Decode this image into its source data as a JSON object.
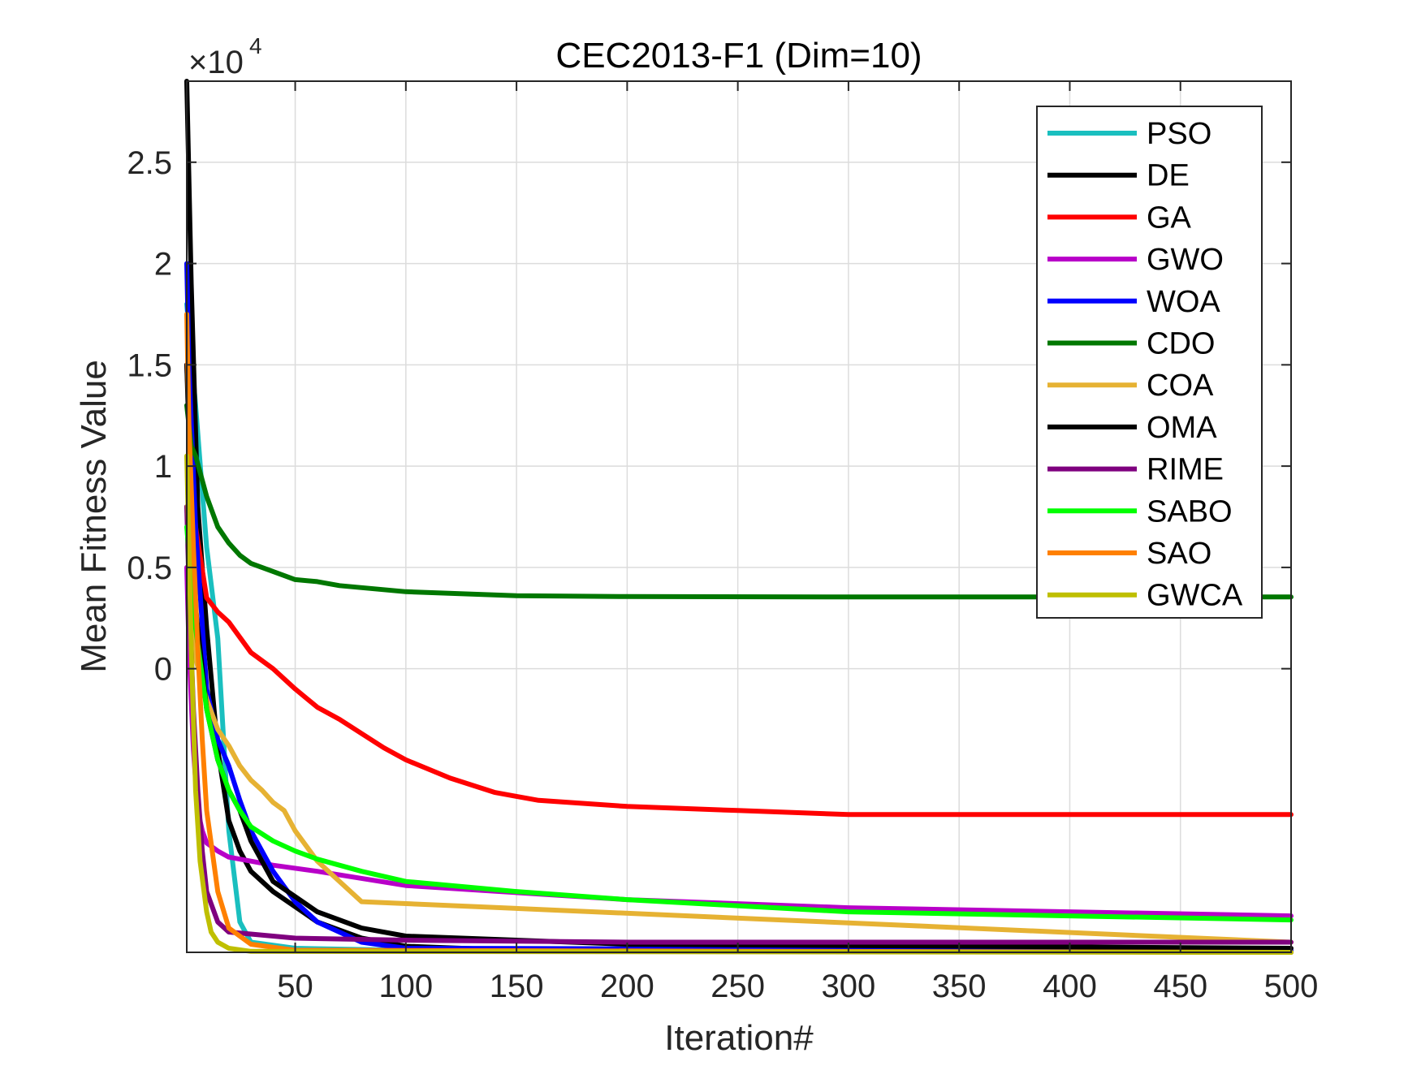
{
  "chart_data": {
    "type": "line",
    "title": "CEC2013-F1 (Dim=10)",
    "xlabel": "Iteration#",
    "ylabel": "Mean Fitness Value",
    "exponent_label": "×10",
    "exponent_power": "4",
    "y_scale": 10000,
    "xlim": [
      1,
      500
    ],
    "ylim": [
      -14000,
      29000
    ],
    "grid": true,
    "legend_position": "top-right",
    "x_ticks": [
      50,
      100,
      150,
      200,
      250,
      300,
      350,
      400,
      450,
      500
    ],
    "x_tick_labels": [
      "50",
      "100",
      "150",
      "200",
      "250",
      "300",
      "350",
      "400",
      "450",
      "500"
    ],
    "y_ticks": [
      0,
      5000,
      10000,
      15000,
      20000,
      25000
    ],
    "y_tick_labels": [
      "0",
      "0.5",
      "1",
      "1.5",
      "2",
      "2.5"
    ],
    "series": [
      {
        "name": "PSO",
        "color": "#1ABFBF",
        "x": [
          1,
          5,
          10,
          15,
          20,
          25,
          30,
          50,
          100,
          500
        ],
        "y": [
          18000,
          13000,
          6000,
          1500,
          -8000,
          -12500,
          -13500,
          -13800,
          -13900,
          -14000
        ]
      },
      {
        "name": "DE",
        "color": "#000000",
        "x": [
          1,
          3,
          6,
          10,
          15,
          20,
          25,
          30,
          40,
          60,
          80,
          100,
          150,
          500
        ],
        "y": [
          29000,
          19000,
          8000,
          2000,
          -4000,
          -7500,
          -9000,
          -10000,
          -11000,
          -12500,
          -13300,
          -13700,
          -13900,
          -14000
        ]
      },
      {
        "name": "GA",
        "color": "#FF0000",
        "x": [
          1,
          3,
          5,
          10,
          15,
          20,
          30,
          40,
          50,
          60,
          70,
          80,
          90,
          100,
          120,
          140,
          150,
          160,
          200,
          250,
          300,
          400,
          500
        ],
        "y": [
          15000,
          10000,
          7000,
          3500,
          2800,
          2300,
          800,
          0,
          -1000,
          -1900,
          -2500,
          -3200,
          -3900,
          -4500,
          -5400,
          -6100,
          -6300,
          -6500,
          -6800,
          -7000,
          -7200,
          -7200,
          -7200
        ]
      },
      {
        "name": "GWO",
        "color": "#B800C8",
        "x": [
          1,
          2,
          4,
          6,
          8,
          10,
          15,
          20,
          40,
          60,
          100,
          200,
          300,
          500
        ],
        "y": [
          5000,
          1000,
          -4000,
          -7000,
          -8000,
          -8600,
          -9000,
          -9300,
          -9700,
          -10000,
          -10700,
          -11400,
          -11800,
          -12200
        ]
      },
      {
        "name": "WOA",
        "color": "#0000FF",
        "x": [
          1,
          2,
          5,
          10,
          15,
          20,
          25,
          30,
          40,
          50,
          60,
          80,
          100,
          500
        ],
        "y": [
          20000,
          15000,
          7000,
          -1000,
          -3500,
          -4800,
          -6500,
          -8000,
          -10000,
          -11500,
          -12500,
          -13500,
          -13800,
          -13900
        ]
      },
      {
        "name": "CDO",
        "color": "#007700",
        "x": [
          1,
          3,
          5,
          10,
          15,
          20,
          25,
          30,
          40,
          50,
          60,
          70,
          80,
          100,
          150,
          200,
          300,
          500
        ],
        "y": [
          13000,
          11000,
          10500,
          8500,
          7000,
          6200,
          5600,
          5200,
          4800,
          4400,
          4300,
          4100,
          4000,
          3800,
          3600,
          3560,
          3540,
          3540
        ]
      },
      {
        "name": "COA",
        "color": "#E6B233",
        "x": [
          1,
          3,
          5,
          10,
          15,
          20,
          25,
          30,
          35,
          40,
          45,
          50,
          60,
          80,
          500
        ],
        "y": [
          8000,
          4000,
          500,
          -1500,
          -3000,
          -3800,
          -4800,
          -5500,
          -6000,
          -6600,
          -7000,
          -8000,
          -9500,
          -11500,
          -13500
        ]
      },
      {
        "name": "OMA",
        "color": "#000000",
        "x": [
          1,
          3,
          5,
          10,
          15,
          20,
          25,
          30,
          40,
          60,
          80,
          100,
          200,
          500
        ],
        "y": [
          15000,
          8000,
          3000,
          -2000,
          -4500,
          -6000,
          -7000,
          -8500,
          -10500,
          -12000,
          -12800,
          -13200,
          -13600,
          -13800
        ]
      },
      {
        "name": "RIME",
        "color": "#7F007F",
        "x": [
          1,
          2,
          4,
          6,
          8,
          10,
          15,
          20,
          50,
          100,
          200,
          500
        ],
        "y": [
          8000,
          4000,
          -2000,
          -6000,
          -9000,
          -11000,
          -12500,
          -13000,
          -13300,
          -13400,
          -13500,
          -13500
        ]
      },
      {
        "name": "SABO",
        "color": "#00FF00",
        "x": [
          1,
          5,
          10,
          15,
          20,
          25,
          30,
          40,
          50,
          60,
          80,
          100,
          150,
          200,
          250,
          300,
          400,
          500
        ],
        "y": [
          7000,
          2000,
          -2000,
          -4500,
          -6000,
          -7000,
          -7800,
          -8500,
          -9000,
          -9400,
          -10000,
          -10500,
          -11000,
          -11400,
          -11700,
          -12000,
          -12200,
          -12400
        ]
      },
      {
        "name": "SAO",
        "color": "#FF8000",
        "x": [
          1,
          2,
          4,
          6,
          8,
          10,
          15,
          20,
          30,
          50,
          500
        ],
        "y": [
          17500,
          12000,
          6000,
          1000,
          -3500,
          -7000,
          -11000,
          -12800,
          -13600,
          -13900,
          -14000
        ]
      },
      {
        "name": "GWCA",
        "color": "#BFBF00",
        "x": [
          1,
          2,
          3,
          5,
          7,
          10,
          12,
          15,
          20,
          30,
          500
        ],
        "y": [
          10500,
          6000,
          1000,
          -6000,
          -9500,
          -12000,
          -13000,
          -13500,
          -13800,
          -13950,
          -14000
        ]
      }
    ]
  }
}
